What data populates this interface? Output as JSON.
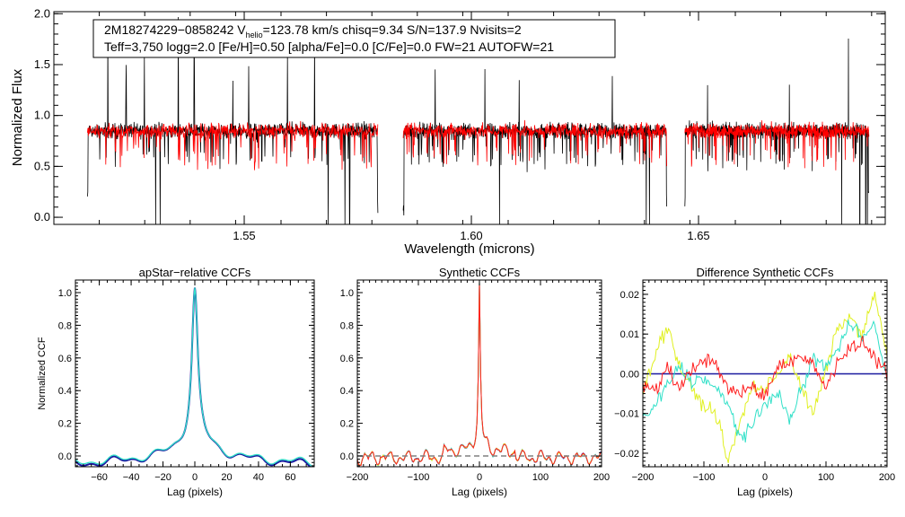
{
  "chart_data": [
    {
      "type": "line",
      "panel": "spectrum",
      "title_line1": [
        "2M18274229−0858242  V",
        "helio",
        "=123.78 km/s  chisq=9.34  S/N=137.9  Nvisits=2"
      ],
      "title_line2": "Teff=3,750 logg=2.0 [Fe/H]=0.50 [alpha/Fe]=0.0 [C/Fe]=0.0 FW=21 AUTOFW=21",
      "xlabel": "Wavelength (microns)",
      "ylabel": "Normalized Flux",
      "xlim": [
        1.5081,
        1.6911
      ],
      "ylim": [
        -0.07,
        2.02
      ],
      "xticks": [
        {
          "v": 1.55,
          "label": "1.55"
        },
        {
          "v": 1.6,
          "label": "1.60"
        },
        {
          "v": 1.65,
          "label": "1.65"
        }
      ],
      "yticks": [
        {
          "v": 0.0,
          "label": "0.0"
        },
        {
          "v": 0.5,
          "label": "0.5"
        },
        {
          "v": 1.0,
          "label": "1.0"
        },
        {
          "v": 1.5,
          "label": "1.5"
        },
        {
          "v": 2.0,
          "label": "2.0"
        }
      ],
      "chips": [
        [
          1.5155,
          1.5795
        ],
        [
          1.585,
          1.643
        ],
        [
          1.647,
          1.6875
        ]
      ],
      "continuum_level": 0.85,
      "deep_lines": [
        1.5305,
        1.5315,
        1.5685,
        1.5722,
        1.5732,
        1.6062,
        1.6385,
        1.6392,
        1.6815,
        1.6855,
        1.6868,
        1.6872
      ],
      "emission_spikes": [
        1.52,
        1.524,
        1.528,
        1.5355,
        1.539,
        1.5475,
        1.551,
        1.5595,
        1.5655,
        1.592,
        1.603,
        1.6105,
        1.631,
        1.643,
        1.652,
        1.67,
        1.683
      ],
      "series": [
        {
          "name": "observed",
          "color": "#000000"
        },
        {
          "name": "model",
          "color": "#ff0000"
        }
      ]
    },
    {
      "type": "line",
      "panel": "apstar-ccf",
      "title": "apStar−relative CCFs",
      "xlabel": "Lag (pixels)",
      "ylabel": "Normalized CCF",
      "xlim": [
        -75,
        75
      ],
      "ylim": [
        -0.066,
        1.077
      ],
      "xticks": [
        {
          "v": -60,
          "label": "−60"
        },
        {
          "v": -40,
          "label": "−40"
        },
        {
          "v": -20,
          "label": "−20"
        },
        {
          "v": 0,
          "label": "0"
        },
        {
          "v": 20,
          "label": "20"
        },
        {
          "v": 40,
          "label": "40"
        },
        {
          "v": 60,
          "label": "60"
        }
      ],
      "yticks": [
        {
          "v": 0,
          "label": "0.0"
        },
        {
          "v": 0.2,
          "label": "0.2"
        },
        {
          "v": 0.4,
          "label": "0.4"
        },
        {
          "v": 0.6,
          "label": "0.6"
        },
        {
          "v": 0.8,
          "label": "0.8"
        },
        {
          "v": 1.0,
          "label": "1.0"
        }
      ],
      "series": [
        {
          "name": "visit1",
          "color": "#1a1aa0"
        },
        {
          "name": "visit2",
          "color": "#30e0c8"
        }
      ]
    },
    {
      "type": "line",
      "panel": "synthetic-ccf",
      "title": "Synthetic CCFs",
      "xlabel": "Lag (pixels)",
      "xlim": [
        -200,
        200
      ],
      "ylim": [
        -0.066,
        1.077
      ],
      "xticks": [
        {
          "v": -200,
          "label": "−200"
        },
        {
          "v": -100,
          "label": "−100"
        },
        {
          "v": 0,
          "label": "0"
        },
        {
          "v": 100,
          "label": "100"
        },
        {
          "v": 200,
          "label": "200"
        }
      ],
      "yticks": [
        {
          "v": 0,
          "label": "0.0"
        },
        {
          "v": 0.2,
          "label": "0.2"
        },
        {
          "v": 0.4,
          "label": "0.4"
        },
        {
          "v": 0.6,
          "label": "0.6"
        },
        {
          "v": 0.8,
          "label": "0.8"
        },
        {
          "v": 1.0,
          "label": "1.0"
        }
      ],
      "zero_line_color": "#808080",
      "series": [
        {
          "name": "s1",
          "color": "#1a1aa0"
        },
        {
          "name": "s2",
          "color": "#30e0c8"
        },
        {
          "name": "s3",
          "color": "#e0f020"
        },
        {
          "name": "s4",
          "color": "#ff2020"
        }
      ]
    },
    {
      "type": "line",
      "panel": "difference-ccf",
      "title": "Difference Synthetic CCFs",
      "xlabel": "Lag (pixels)",
      "xlim": [
        -200,
        200
      ],
      "ylim": [
        -0.0234,
        0.0236
      ],
      "xticks": [
        {
          "v": -200,
          "label": "−200"
        },
        {
          "v": -100,
          "label": "−100"
        },
        {
          "v": 0,
          "label": "0"
        },
        {
          "v": 100,
          "label": "100"
        },
        {
          "v": 200,
          "label": "200"
        }
      ],
      "yticks": [
        {
          "v": -0.02,
          "label": "−0.02"
        },
        {
          "v": -0.01,
          "label": "−0.01"
        },
        {
          "v": 0,
          "label": "0.00"
        },
        {
          "v": 0.01,
          "label": "0.01"
        },
        {
          "v": 0.02,
          "label": "0.02"
        }
      ],
      "x": [
        -200,
        -180,
        -160,
        -140,
        -120,
        -100,
        -80,
        -60,
        -40,
        -20,
        0,
        20,
        40,
        60,
        80,
        100,
        120,
        140,
        160,
        180,
        200
      ],
      "series": [
        {
          "name": "zero",
          "color": "#1a1aa0",
          "values": [
            0,
            0,
            0,
            0,
            0,
            0,
            0,
            0,
            0,
            0,
            0,
            0,
            0,
            0,
            0,
            0,
            0,
            0,
            0,
            0,
            0
          ]
        },
        {
          "name": "yellow",
          "color": "#e0f020",
          "values": [
            -0.005,
            0.005,
            0.012,
            0.002,
            -0.004,
            -0.008,
            -0.01,
            -0.022,
            -0.012,
            -0.003,
            -0.004,
            0.0,
            0.005,
            -0.004,
            -0.01,
            0.001,
            0.012,
            0.014,
            0.01,
            0.02,
            0.005
          ]
        },
        {
          "name": "cyan",
          "color": "#30e0c8",
          "values": [
            -0.012,
            -0.008,
            -0.003,
            0.002,
            -0.002,
            -0.001,
            -0.004,
            -0.008,
            -0.016,
            -0.013,
            -0.008,
            -0.004,
            -0.012,
            -0.004,
            0.004,
            0.002,
            0.006,
            0.013,
            0.01,
            0.012,
            -0.002
          ]
        },
        {
          "name": "red",
          "color": "#ff2020",
          "values": [
            -0.002,
            -0.005,
            0.002,
            -0.004,
            0.001,
            0.004,
            0.002,
            -0.004,
            -0.005,
            -0.003,
            -0.006,
            0.002,
            0.003,
            0.004,
            0.003,
            -0.004,
            0.004,
            0.006,
            0.008,
            0.004,
            0.0
          ]
        }
      ]
    }
  ]
}
